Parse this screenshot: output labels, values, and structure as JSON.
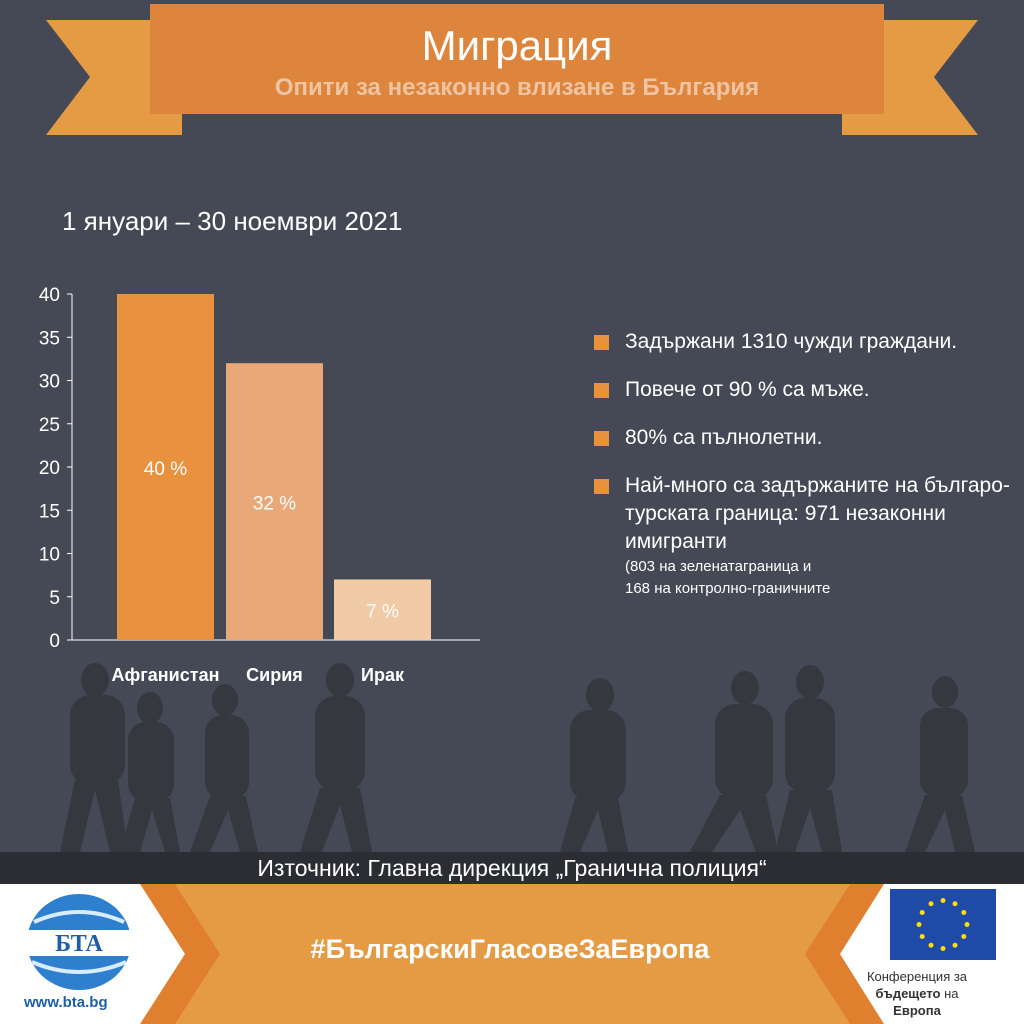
{
  "header": {
    "title": "Миграция",
    "subtitle": "Опити за незаконно влизане в България"
  },
  "period": "1 януари – 30 ноември 2021",
  "chart_data": {
    "type": "bar",
    "title": "",
    "categories": [
      "Афганистан",
      "Сирия",
      "Ирак"
    ],
    "values": [
      40,
      32,
      7
    ],
    "data_labels": [
      "40 %",
      "32 %",
      "7 %"
    ],
    "colors": [
      "#E8913F",
      "#E9A877",
      "#F1CAA6"
    ],
    "yticks": [
      0,
      5,
      10,
      15,
      20,
      25,
      30,
      35,
      40
    ],
    "ylim": [
      0,
      40
    ],
    "xlabel": "",
    "ylabel": "",
    "grid": false
  },
  "facts": [
    "Задържани 1310 чужди граждани.",
    "Повече от 90 % са мъже.",
    "80% са пълнолетни.",
    "Най-много са задържаните на българо-турската граница: 971 незаконни имигранти"
  ],
  "fact_note_lines": [
    "(803 на зеленатаграница и",
    "168 на контролно-граничните"
  ],
  "source": "Източник: Главна дирекция „Гранична полиция“",
  "footer": {
    "hashtag": "#БългарскиГласовеЗаЕвропа",
    "url": "www.bta.bg",
    "logo_text": "БТА",
    "eu_line1": "Конференция за",
    "eu_line2_bold": "бъдещето",
    "eu_line2_rest": " на",
    "eu_line3": "Европа"
  },
  "watermark": "БТА"
}
